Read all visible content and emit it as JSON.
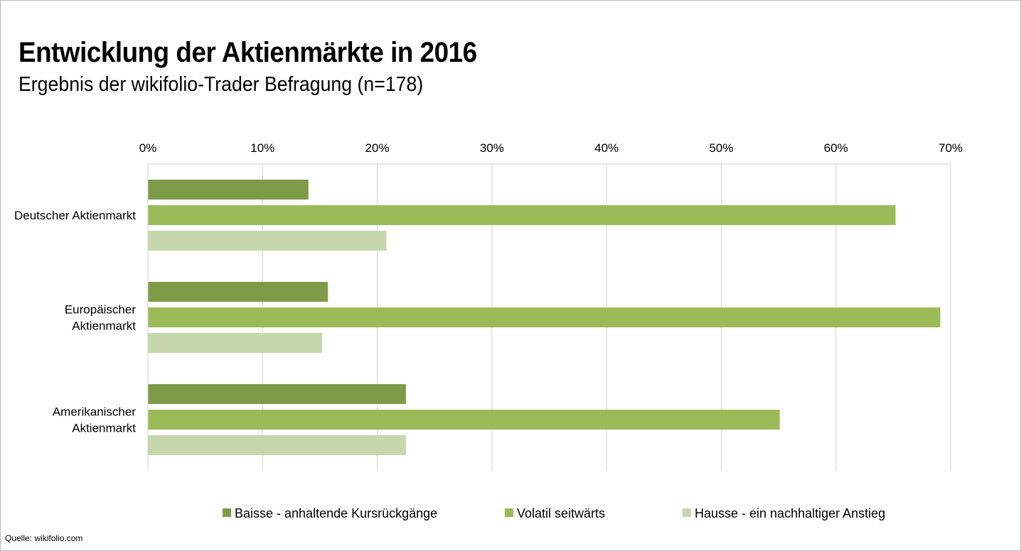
{
  "title": "Entwicklung der Aktienmärkte in 2016",
  "subtitle": "Ergebnis der wikifolio-Trader Befragung (n=178)",
  "source": "Quelle: wikifolio.com",
  "chart_data": {
    "type": "bar",
    "orientation": "horizontal",
    "categories": [
      [
        "Deutscher Aktienmarkt"
      ],
      [
        "Europäischer",
        "Aktienmarkt"
      ],
      [
        "Amerikanischer",
        "Aktienmarkt"
      ]
    ],
    "series": [
      {
        "name": "Baisse - anhaltende Kursrückgänge",
        "color": "#7f9b48",
        "values": [
          14,
          15.7,
          22.5
        ]
      },
      {
        "name": "Volatil seitwärts",
        "color": "#9bbb59",
        "values": [
          65.2,
          69.1,
          55.1
        ]
      },
      {
        "name": "Hausse - ein nachhaltiger Anstieg",
        "color": "#c6d7ab",
        "values": [
          20.8,
          15.2,
          22.5
        ]
      }
    ],
    "xlim": [
      0,
      70
    ],
    "x_ticks": [
      "0%",
      "10%",
      "20%",
      "30%",
      "40%",
      "50%",
      "60%",
      "70%"
    ],
    "x_axis_position": "top",
    "grid": true,
    "legend_position": "bottom"
  }
}
